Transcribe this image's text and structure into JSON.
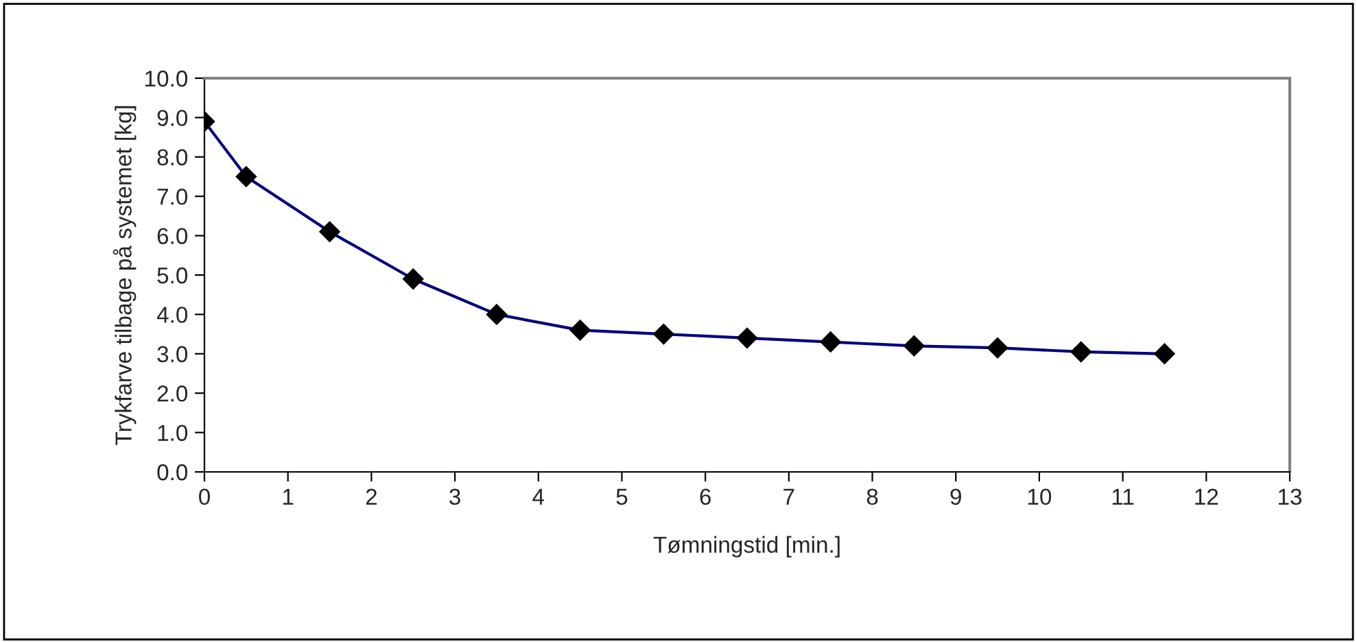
{
  "chart_data": {
    "type": "line",
    "xlabel": "Tømningstid [min.]",
    "ylabel": "Trykfarve tilbage på systemet [kg]",
    "x": [
      0,
      0.5,
      1.5,
      2.5,
      3.5,
      4.5,
      5.5,
      6.5,
      7.5,
      8.5,
      9.5,
      10.5,
      11.5
    ],
    "series": [
      {
        "color": "#000080",
        "values": [
          8.9,
          7.5,
          6.1,
          4.9,
          4.0,
          3.6,
          3.5,
          3.4,
          3.3,
          3.2,
          3.15,
          3.05,
          3.0
        ]
      }
    ],
    "xlim": [
      0,
      13
    ],
    "xticks": [
      0,
      1,
      2,
      3,
      4,
      5,
      6,
      7,
      8,
      9,
      10,
      11,
      12,
      13
    ],
    "ylim": [
      0,
      10
    ],
    "yticks": [
      {
        "value": 0,
        "label": "0.0"
      },
      {
        "value": 1,
        "label": "1.0"
      },
      {
        "value": 2,
        "label": "2.0"
      },
      {
        "value": 3,
        "label": "3.0"
      },
      {
        "value": 4,
        "label": "4.0"
      },
      {
        "value": 5,
        "label": "5.0"
      },
      {
        "value": 6,
        "label": "6.0"
      },
      {
        "value": 7,
        "label": "7.0"
      },
      {
        "value": 8,
        "label": "8.0"
      },
      {
        "value": 9,
        "label": "9.0"
      },
      {
        "value": 10,
        "label": "10.0"
      }
    ],
    "marker": "diamond",
    "line_style": "solid",
    "grid": false,
    "legend": false
  }
}
